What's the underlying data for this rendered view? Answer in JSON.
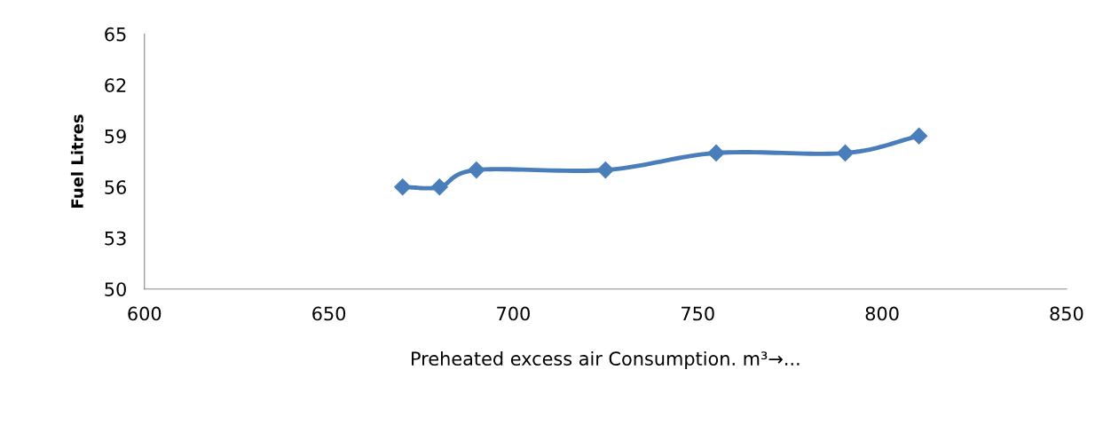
{
  "chart_data": {
    "type": "line",
    "xlabel": "Preheated excess air Consumption. m³→...",
    "ylabel": "Fuel Litres",
    "x": [
      670,
      680,
      690,
      725,
      755,
      790,
      810
    ],
    "series": [
      {
        "color": "#4a7ebb",
        "values": [
          56,
          56,
          57,
          57,
          58,
          58,
          59
        ]
      }
    ],
    "xlim": [
      600,
      850
    ],
    "xticks": [
      600,
      650,
      700,
      750,
      800,
      850
    ],
    "ylim": [
      50,
      65
    ],
    "yticks": [
      50,
      53,
      56,
      59,
      62,
      65
    ],
    "marker": "diamond",
    "line_style": "solid"
  }
}
